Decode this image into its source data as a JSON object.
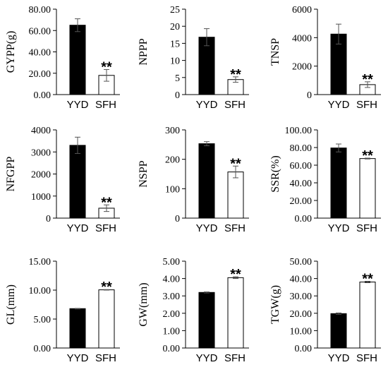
{
  "chart_data": [
    {
      "type": "bar",
      "ylabel": "GYPP(g)",
      "categories": [
        "YYD",
        "SFH"
      ],
      "values": [
        65.0,
        18.0
      ],
      "errors": [
        6.0,
        5.5
      ],
      "ylim": [
        0,
        80
      ],
      "yticks": [
        "0.00",
        "20.00",
        "40.00",
        "60.00",
        "80.00"
      ],
      "significance": [
        "",
        "**"
      ]
    },
    {
      "type": "bar",
      "ylabel": "NPPP",
      "categories": [
        "YYD",
        "SFH"
      ],
      "values": [
        16.8,
        4.4
      ],
      "errors": [
        2.5,
        0.8
      ],
      "ylim": [
        0,
        25
      ],
      "yticks": [
        "0",
        "5",
        "10",
        "15",
        "20",
        "25"
      ],
      "significance": [
        "",
        "**"
      ]
    },
    {
      "type": "bar",
      "ylabel": "TNSP",
      "categories": [
        "YYD",
        "SFH"
      ],
      "values": [
        4250,
        700
      ],
      "errors": [
        700,
        200
      ],
      "ylim": [
        0,
        6000
      ],
      "yticks": [
        "0",
        "2000",
        "4000",
        "6000"
      ],
      "significance": [
        "",
        "**"
      ]
    },
    {
      "type": "bar",
      "ylabel": "NFGPP",
      "categories": [
        "YYD",
        "SFH"
      ],
      "values": [
        3300,
        450
      ],
      "errors": [
        370,
        150
      ],
      "ylim": [
        0,
        4000
      ],
      "yticks": [
        "0",
        "1000",
        "2000",
        "3000",
        "4000"
      ],
      "significance": [
        "",
        "**"
      ]
    },
    {
      "type": "bar",
      "ylabel": "NSPP",
      "categories": [
        "YYD",
        "SFH"
      ],
      "values": [
        253,
        157
      ],
      "errors": [
        7,
        20
      ],
      "ylim": [
        0,
        300
      ],
      "yticks": [
        "0",
        "100",
        "200",
        "300"
      ],
      "significance": [
        "",
        "**"
      ]
    },
    {
      "type": "bar",
      "ylabel": "SSR(%)",
      "categories": [
        "YYD",
        "SFH"
      ],
      "values": [
        79.5,
        67.5
      ],
      "errors": [
        4.5,
        0.5
      ],
      "ylim": [
        0,
        100
      ],
      "yticks": [
        "0.00",
        "20.00",
        "40.00",
        "60.00",
        "80.00",
        "100.00"
      ],
      "significance": [
        "",
        "**"
      ]
    },
    {
      "type": "bar",
      "ylabel": "GL(mm)",
      "categories": [
        "YYD",
        "SFH"
      ],
      "values": [
        6.8,
        10.05
      ],
      "errors": [
        0.05,
        0.05
      ],
      "ylim": [
        0,
        15
      ],
      "yticks": [
        "0.00",
        "5.00",
        "10.00",
        "15.00"
      ],
      "significance": [
        "",
        "**"
      ]
    },
    {
      "type": "bar",
      "ylabel": "GW(mm)",
      "categories": [
        "YYD",
        "SFH"
      ],
      "values": [
        3.2,
        4.05
      ],
      "errors": [
        0.03,
        0.05
      ],
      "ylim": [
        0,
        5
      ],
      "yticks": [
        "0.00",
        "1.00",
        "2.00",
        "3.00",
        "4.00",
        "5.00"
      ],
      "significance": [
        "",
        "**"
      ]
    },
    {
      "type": "bar",
      "ylabel": "TGW(g)",
      "categories": [
        "YYD",
        "SFH"
      ],
      "values": [
        19.8,
        38.0
      ],
      "errors": [
        0.4,
        0.4
      ],
      "ylim": [
        0,
        50
      ],
      "yticks": [
        "0.00",
        "10.00",
        "20.00",
        "30.00",
        "40.00",
        "50.00"
      ],
      "significance": [
        "",
        "**"
      ]
    }
  ],
  "colors": {
    "bar_1": "#000000",
    "bar_2": "#ffffff",
    "axis": "#000000",
    "error_bar": "#555555"
  }
}
